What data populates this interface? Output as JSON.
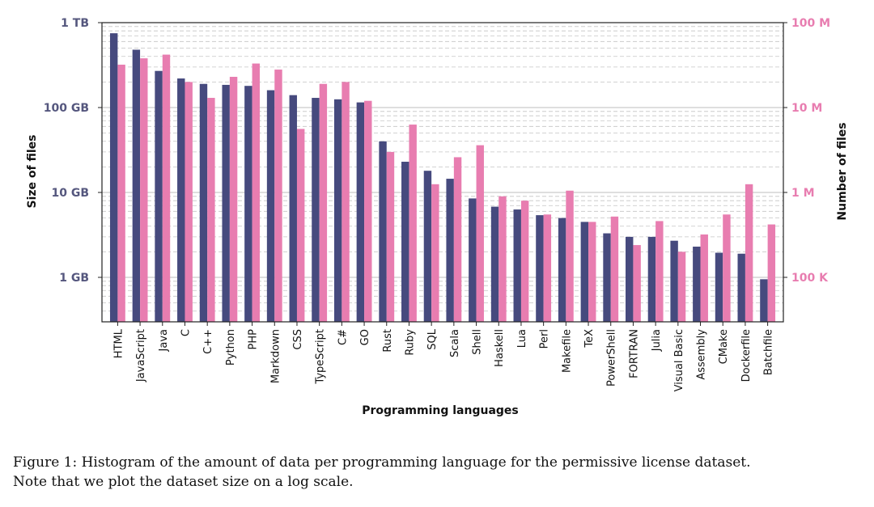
{
  "chart_data": {
    "type": "bar",
    "xlabel": "Programming languages",
    "ylabel_left": "Size of files",
    "ylabel_right": "Number of files",
    "scale": "log",
    "grid": true,
    "left_axis": {
      "unit": "GB",
      "range": [
        0.3,
        1200
      ],
      "ticks": [
        {
          "value": 1,
          "label": "1 GB"
        },
        {
          "value": 10,
          "label": "10 GB"
        },
        {
          "value": 100,
          "label": "100 GB"
        },
        {
          "value": 1000,
          "label": "1 TB"
        }
      ]
    },
    "right_axis": {
      "unit": "files",
      "range": [
        30000,
        120000000
      ],
      "ticks": [
        {
          "value": 100000,
          "label": "100 K"
        },
        {
          "value": 1000000,
          "label": "1 M"
        },
        {
          "value": 10000000,
          "label": "10 M"
        },
        {
          "value": 100000000,
          "label": "100 M"
        }
      ]
    },
    "categories": [
      "HTML",
      "JavaScript",
      "Java",
      "C",
      "C++",
      "Python",
      "PHP",
      "Markdown",
      "CSS",
      "TypeScript",
      "C#",
      "GO",
      "Rust",
      "Ruby",
      "SQL",
      "Scala",
      "Shell",
      "Haskell",
      "Lua",
      "Perl",
      "Makefile",
      "TeX",
      "PowerShell",
      "FORTRAN",
      "Julia",
      "Visual Basic",
      "Assembly",
      "CMake",
      "Dockerfile",
      "Batchfile"
    ],
    "series": [
      {
        "name": "Size of files",
        "axis": "left",
        "color": "#464a7e",
        "values": [
          750,
          480,
          270,
          220,
          190,
          185,
          180,
          160,
          140,
          130,
          125,
          115,
          40,
          23,
          18,
          14.5,
          8.5,
          6.8,
          6.3,
          5.4,
          5.0,
          4.5,
          3.3,
          3.0,
          3.0,
          2.7,
          2.3,
          1.95,
          1.9,
          0.95
        ]
      },
      {
        "name": "Number of files",
        "axis": "right",
        "color": "#e87db0",
        "values": [
          32000000,
          38000000,
          42000000,
          20000000,
          13000000,
          23000000,
          33000000,
          28000000,
          5600000,
          19000000,
          20000000,
          12000000,
          3000000,
          6300000,
          1250000,
          2600000,
          3600000,
          900000,
          800000,
          550000,
          1050000,
          450000,
          520000,
          240000,
          460000,
          200000,
          320000,
          550000,
          1250000,
          420000
        ]
      }
    ]
  },
  "caption": {
    "line1": "Figure 1: Histogram of the amount of data per programming language for the permissive license dataset.",
    "line2": "Note that we plot the dataset size on a log scale."
  }
}
